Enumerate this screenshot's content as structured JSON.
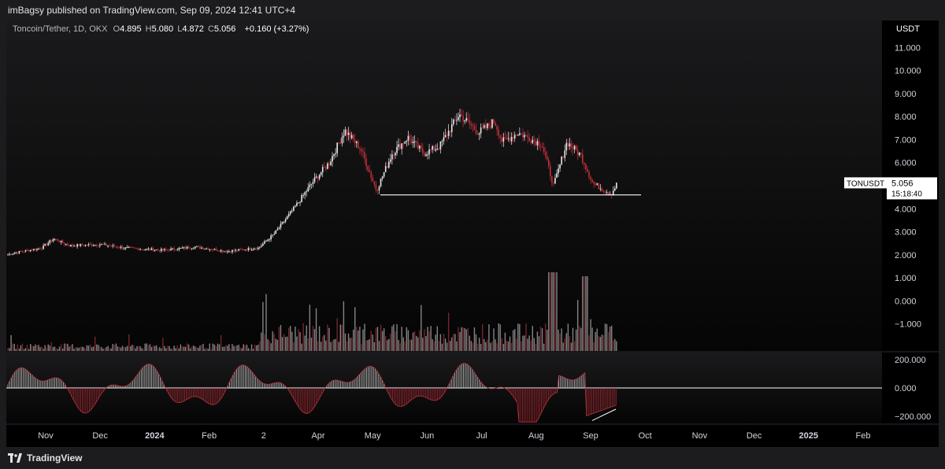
{
  "header": {
    "published_by": "imBagsy published on TradingView.com, Sep 09, 2024 12:41 UTC+4"
  },
  "legend": {
    "symbol": "Toncoin/Tether, 1D, OKX",
    "open_label": "O",
    "open": "4.895",
    "high_label": "H",
    "high": "5.080",
    "low_label": "L",
    "low": "4.872",
    "close_label": "C",
    "close": "5.056",
    "change": "+0.160 (+3.27%)"
  },
  "footer": {
    "brand": "TradingView"
  },
  "colors": {
    "background": "#000000",
    "up_candle": "#e8e8e8",
    "down_candle": "#c2303b",
    "axis_text": "#d1d4dc",
    "support_line": "#ffffff"
  },
  "chart_data": {
    "type": "candlestick",
    "symbol": "TONUSDT",
    "currency": "USDT",
    "last_price": "5.056",
    "countdown": "15:18:40",
    "price_axis": {
      "ticks": [
        "11.000",
        "10.000",
        "9.000",
        "8.000",
        "7.000",
        "6.000",
        "5.000",
        "4.000",
        "3.000",
        "2.000",
        "1.000",
        "0.000",
        "−1.000"
      ],
      "range": [
        -1.9,
        11.9
      ]
    },
    "oscillator_axis": {
      "ticks": [
        "200.000",
        "0.000",
        "−200.000"
      ],
      "range": [
        -250,
        250
      ]
    },
    "time_axis": {
      "labels": [
        "Nov",
        "Dec",
        "2024",
        "Feb",
        "2",
        "Apr",
        "May",
        "Jun",
        "Jul",
        "Aug",
        "Sep",
        "Oct",
        "Nov",
        "Dec",
        "2025",
        "Feb"
      ],
      "bold": [
        "2024",
        "2025"
      ]
    },
    "price_path": [
      [
        0,
        2.0
      ],
      [
        20,
        2.15
      ],
      [
        45,
        2.3
      ],
      [
        60,
        2.7
      ],
      [
        80,
        2.4
      ],
      [
        120,
        2.45
      ],
      [
        150,
        2.3
      ],
      [
        200,
        2.2
      ],
      [
        240,
        2.35
      ],
      [
        280,
        2.15
      ],
      [
        320,
        2.3
      ],
      [
        340,
        2.9
      ],
      [
        365,
        4.0
      ],
      [
        390,
        5.2
      ],
      [
        410,
        6.0
      ],
      [
        430,
        7.4
      ],
      [
        450,
        6.6
      ],
      [
        470,
        4.8
      ],
      [
        490,
        6.4
      ],
      [
        510,
        7.1
      ],
      [
        530,
        6.4
      ],
      [
        550,
        6.7
      ],
      [
        575,
        8.1
      ],
      [
        600,
        7.3
      ],
      [
        620,
        7.8
      ],
      [
        630,
        6.9
      ],
      [
        650,
        7.3
      ],
      [
        680,
        6.8
      ],
      [
        695,
        5.0
      ],
      [
        712,
        6.9
      ],
      [
        730,
        6.3
      ],
      [
        745,
        5.1
      ],
      [
        768,
        4.65
      ],
      [
        775,
        5.06
      ]
    ],
    "support_line": {
      "price": 4.6,
      "from": 475,
      "to": 806
    },
    "volume_series": "relative daily volume bars rising from ~Feb 2024 with spikes in Aug–Sep",
    "oscillator_divergence": {
      "from": [
        744,
        -230
      ],
      "to": [
        774,
        -150
      ]
    }
  }
}
